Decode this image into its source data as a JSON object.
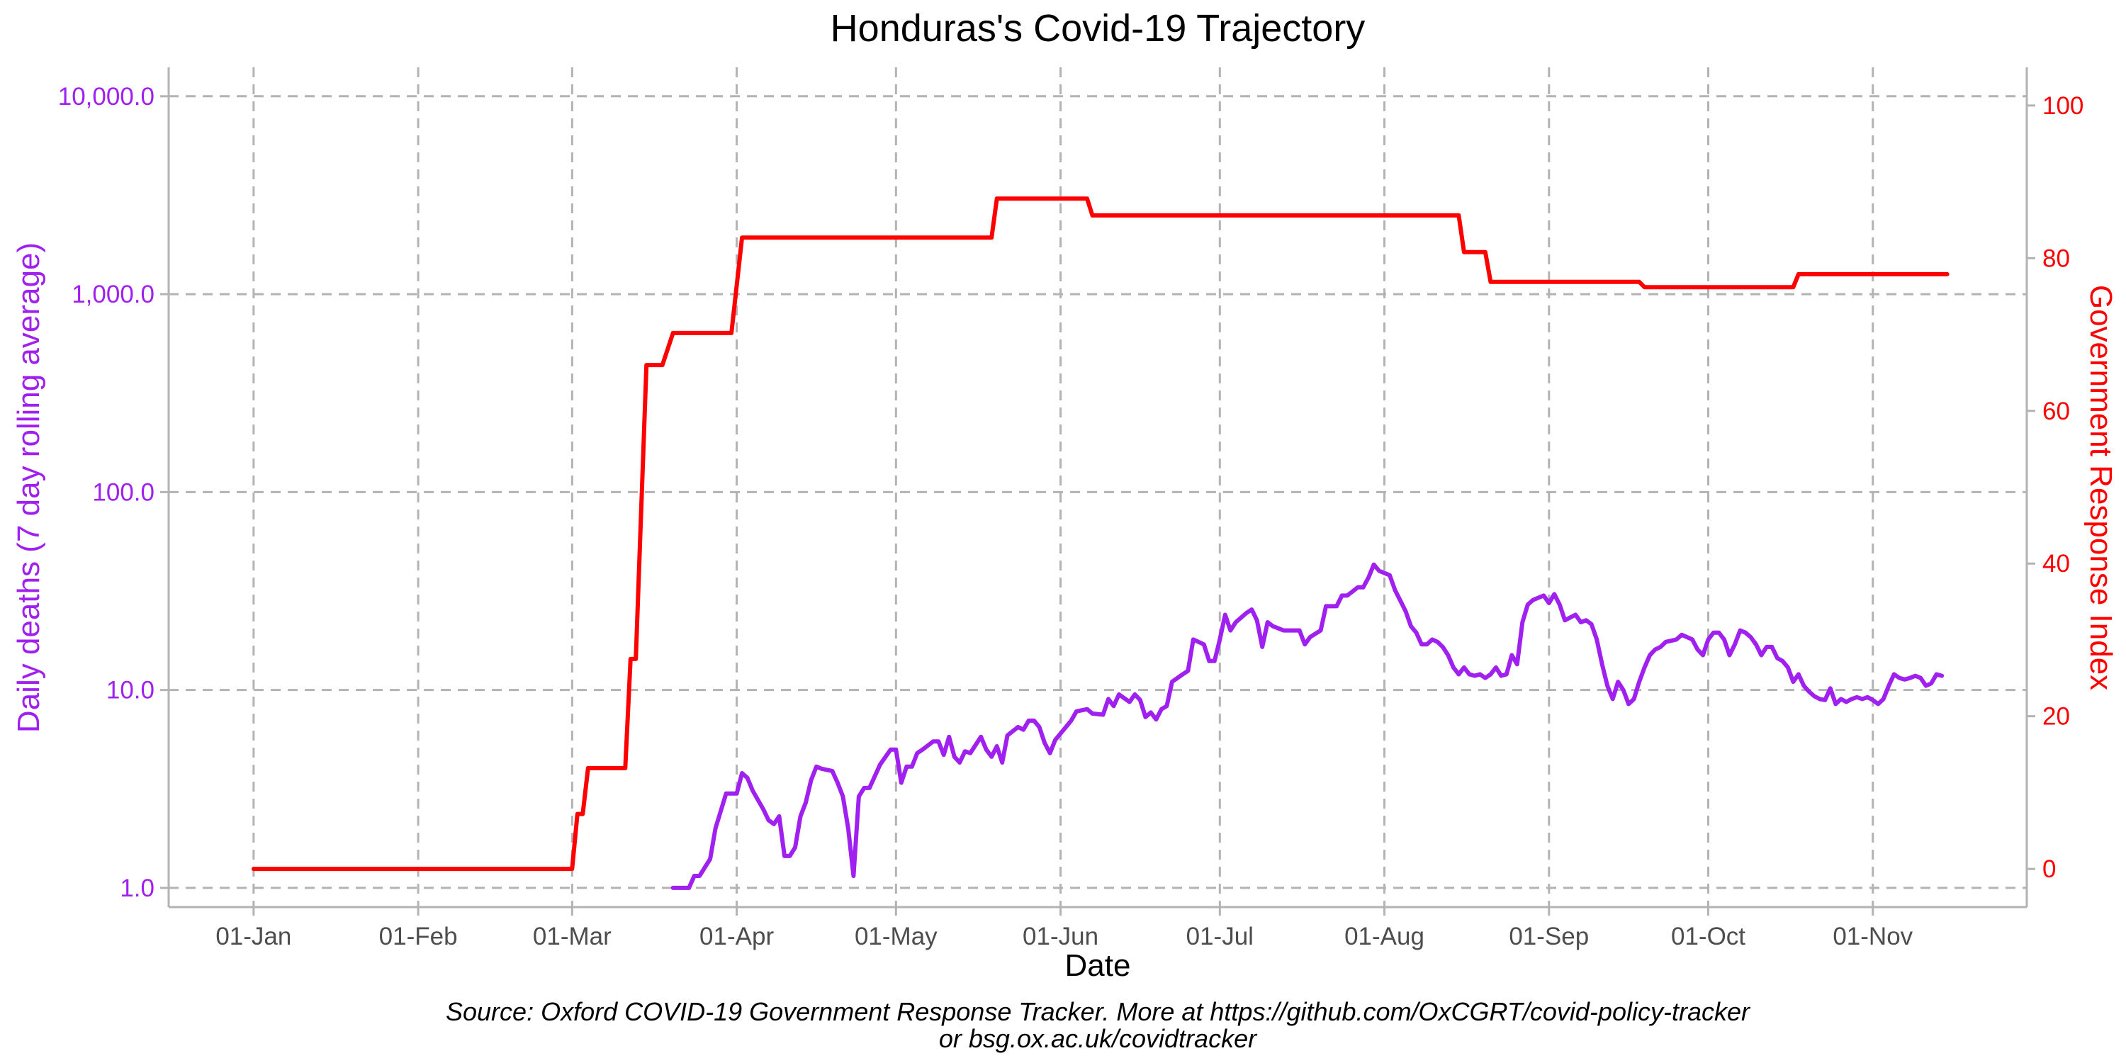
{
  "chart_data": {
    "type": "line",
    "title": "Honduras's Covid-19 Trajectory",
    "xlabel": "Date",
    "ylabel_left": "Daily deaths (7 day rolling average)",
    "ylabel_right": "Government Response Index",
    "y_left_scale": "log10",
    "y_left_ticks": [
      1,
      10,
      100,
      1000,
      10000
    ],
    "y_left_tick_labels": [
      "1.0",
      "10.0",
      "100.0",
      "1,000.0",
      "10,000.0"
    ],
    "y_right_ticks": [
      0,
      20,
      40,
      60,
      80,
      100
    ],
    "y_right_tick_labels": [
      "0",
      "20",
      "40",
      "60",
      "80",
      "100"
    ],
    "x_ticks": [
      "2020-01-01",
      "2020-02-01",
      "2020-03-01",
      "2020-04-01",
      "2020-05-01",
      "2020-06-01",
      "2020-07-01",
      "2020-08-01",
      "2020-09-01",
      "2020-10-01",
      "2020-11-01"
    ],
    "x_tick_labels": [
      "01-Jan",
      "01-Feb",
      "01-Mar",
      "01-Apr",
      "01-May",
      "01-Jun",
      "01-Jul",
      "01-Aug",
      "01-Sep",
      "01-Oct",
      "01-Nov"
    ],
    "x_range": [
      "2019-12-16",
      "2020-11-30"
    ],
    "y_left_range": [
      0.8,
      14000
    ],
    "y_right_range": [
      -5,
      105
    ],
    "grid": true,
    "colors": {
      "deaths": "#a020f0",
      "response": "#ff0000",
      "grid": "#b3b3b3"
    },
    "series": [
      {
        "name": "Government Response Index",
        "axis": "right",
        "points": [
          [
            "2020-01-01",
            0
          ],
          [
            "2020-03-01",
            0
          ],
          [
            "2020-03-02",
            7.2
          ],
          [
            "2020-03-03",
            7.2
          ],
          [
            "2020-03-04",
            13.2
          ],
          [
            "2020-03-11",
            13.2
          ],
          [
            "2020-03-12",
            27.5
          ],
          [
            "2020-03-13",
            27.5
          ],
          [
            "2020-03-15",
            66
          ],
          [
            "2020-03-18",
            66
          ],
          [
            "2020-03-20",
            70.2
          ],
          [
            "2020-03-31",
            70.2
          ],
          [
            "2020-04-02",
            82.7
          ],
          [
            "2020-05-19",
            82.7
          ],
          [
            "2020-05-20",
            87.8
          ],
          [
            "2020-06-06",
            87.8
          ],
          [
            "2020-06-07",
            85.6
          ],
          [
            "2020-08-15",
            85.6
          ],
          [
            "2020-08-16",
            80.8
          ],
          [
            "2020-08-20",
            80.8
          ],
          [
            "2020-08-21",
            76.9
          ],
          [
            "2020-09-18",
            76.9
          ],
          [
            "2020-09-19",
            76.2
          ],
          [
            "2020-10-17",
            76.2
          ],
          [
            "2020-10-18",
            77.9
          ],
          [
            "2020-11-15",
            77.9
          ]
        ]
      },
      {
        "name": "Daily deaths (7 day rolling average)",
        "axis": "left",
        "points": [
          [
            "2020-03-20",
            1.0
          ],
          [
            "2020-03-23",
            1.0
          ],
          [
            "2020-03-24",
            1.15
          ],
          [
            "2020-03-25",
            1.15
          ],
          [
            "2020-03-27",
            1.4
          ],
          [
            "2020-03-28",
            2.0
          ],
          [
            "2020-03-30",
            3.0
          ],
          [
            "2020-04-01",
            3.0
          ],
          [
            "2020-04-02",
            3.8
          ],
          [
            "2020-04-03",
            3.6
          ],
          [
            "2020-04-04",
            3.1
          ],
          [
            "2020-04-06",
            2.5
          ],
          [
            "2020-04-07",
            2.2
          ],
          [
            "2020-04-08",
            2.1
          ],
          [
            "2020-04-09",
            2.3
          ],
          [
            "2020-04-10",
            1.45
          ],
          [
            "2020-04-11",
            1.45
          ],
          [
            "2020-04-12",
            1.6
          ],
          [
            "2020-04-13",
            2.3
          ],
          [
            "2020-04-14",
            2.7
          ],
          [
            "2020-04-15",
            3.5
          ],
          [
            "2020-04-16",
            4.1
          ],
          [
            "2020-04-17",
            4.0
          ],
          [
            "2020-04-19",
            3.9
          ],
          [
            "2020-04-20",
            3.4
          ],
          [
            "2020-04-21",
            2.9
          ],
          [
            "2020-04-22",
            2.0
          ],
          [
            "2020-04-23",
            1.15
          ],
          [
            "2020-04-24",
            2.9
          ],
          [
            "2020-04-25",
            3.2
          ],
          [
            "2020-04-26",
            3.2
          ],
          [
            "2020-04-28",
            4.2
          ],
          [
            "2020-04-30",
            5.0
          ],
          [
            "2020-05-01",
            5.0
          ],
          [
            "2020-05-02",
            3.4
          ],
          [
            "2020-05-03",
            4.1
          ],
          [
            "2020-05-04",
            4.1
          ],
          [
            "2020-05-05",
            4.8
          ],
          [
            "2020-05-06",
            5.0
          ],
          [
            "2020-05-08",
            5.5
          ],
          [
            "2020-05-09",
            5.5
          ],
          [
            "2020-05-10",
            4.7
          ],
          [
            "2020-05-11",
            5.8
          ],
          [
            "2020-05-12",
            4.6
          ],
          [
            "2020-05-13",
            4.3
          ],
          [
            "2020-05-14",
            4.9
          ],
          [
            "2020-05-15",
            4.8
          ],
          [
            "2020-05-17",
            5.8
          ],
          [
            "2020-05-18",
            5.0
          ],
          [
            "2020-05-19",
            4.6
          ],
          [
            "2020-05-20",
            5.2
          ],
          [
            "2020-05-21",
            4.3
          ],
          [
            "2020-05-22",
            5.9
          ],
          [
            "2020-05-24",
            6.5
          ],
          [
            "2020-05-25",
            6.3
          ],
          [
            "2020-05-26",
            7.0
          ],
          [
            "2020-05-27",
            7.0
          ],
          [
            "2020-05-28",
            6.5
          ],
          [
            "2020-05-29",
            5.4
          ],
          [
            "2020-05-30",
            4.8
          ],
          [
            "2020-05-31",
            5.6
          ],
          [
            "2020-06-02",
            6.5
          ],
          [
            "2020-06-03",
            7.0
          ],
          [
            "2020-06-04",
            7.8
          ],
          [
            "2020-06-06",
            8.0
          ],
          [
            "2020-06-07",
            7.6
          ],
          [
            "2020-06-09",
            7.5
          ],
          [
            "2020-06-10",
            9.0
          ],
          [
            "2020-06-11",
            8.3
          ],
          [
            "2020-06-12",
            9.5
          ],
          [
            "2020-06-14",
            8.7
          ],
          [
            "2020-06-15",
            9.5
          ],
          [
            "2020-06-16",
            8.9
          ],
          [
            "2020-06-17",
            7.3
          ],
          [
            "2020-06-18",
            7.7
          ],
          [
            "2020-06-19",
            7.1
          ],
          [
            "2020-06-20",
            8.0
          ],
          [
            "2020-06-21",
            8.3
          ],
          [
            "2020-06-22",
            11.0
          ],
          [
            "2020-06-24",
            12.0
          ],
          [
            "2020-06-25",
            12.5
          ],
          [
            "2020-06-26",
            18.0
          ],
          [
            "2020-06-27",
            17.5
          ],
          [
            "2020-06-28",
            17.0
          ],
          [
            "2020-06-29",
            14.0
          ],
          [
            "2020-06-30",
            14.0
          ],
          [
            "2020-07-01",
            18.0
          ],
          [
            "2020-07-02",
            24.0
          ],
          [
            "2020-07-03",
            20.0
          ],
          [
            "2020-07-04",
            22.0
          ],
          [
            "2020-07-06",
            24.5
          ],
          [
            "2020-07-07",
            25.5
          ],
          [
            "2020-07-08",
            22.5
          ],
          [
            "2020-07-09",
            16.5
          ],
          [
            "2020-07-10",
            22.0
          ],
          [
            "2020-07-11",
            21.0
          ],
          [
            "2020-07-12",
            20.5
          ],
          [
            "2020-07-13",
            20.0
          ],
          [
            "2020-07-16",
            20.0
          ],
          [
            "2020-07-17",
            17.0
          ],
          [
            "2020-07-18",
            18.5
          ],
          [
            "2020-07-20",
            20.0
          ],
          [
            "2020-07-21",
            26.5
          ],
          [
            "2020-07-23",
            26.5
          ],
          [
            "2020-07-24",
            30.0
          ],
          [
            "2020-07-25",
            30.0
          ],
          [
            "2020-07-27",
            33.0
          ],
          [
            "2020-07-28",
            33.0
          ],
          [
            "2020-07-29",
            37.0
          ],
          [
            "2020-07-30",
            43.0
          ],
          [
            "2020-07-31",
            40.0
          ],
          [
            "2020-08-02",
            38.0
          ],
          [
            "2020-08-03",
            32.0
          ],
          [
            "2020-08-05",
            25.0
          ],
          [
            "2020-08-06",
            21.0
          ],
          [
            "2020-08-07",
            19.5
          ],
          [
            "2020-08-08",
            17.0
          ],
          [
            "2020-08-09",
            17.0
          ],
          [
            "2020-08-10",
            18.0
          ],
          [
            "2020-08-11",
            17.5
          ],
          [
            "2020-08-12",
            16.5
          ],
          [
            "2020-08-13",
            15.0
          ],
          [
            "2020-08-14",
            13.0
          ],
          [
            "2020-08-15",
            12.0
          ],
          [
            "2020-08-16",
            13.0
          ],
          [
            "2020-08-17",
            12.0
          ],
          [
            "2020-08-18",
            11.8
          ],
          [
            "2020-08-19",
            12.0
          ],
          [
            "2020-08-20",
            11.5
          ],
          [
            "2020-08-21",
            12.0
          ],
          [
            "2020-08-22",
            13.0
          ],
          [
            "2020-08-23",
            11.8
          ],
          [
            "2020-08-24",
            12.0
          ],
          [
            "2020-08-25",
            15.0
          ],
          [
            "2020-08-26",
            13.5
          ],
          [
            "2020-08-27",
            22.0
          ],
          [
            "2020-08-28",
            27.0
          ],
          [
            "2020-08-29",
            28.5
          ],
          [
            "2020-08-31",
            30.0
          ],
          [
            "2020-09-01",
            27.5
          ],
          [
            "2020-09-02",
            30.5
          ],
          [
            "2020-09-03",
            27.0
          ],
          [
            "2020-09-04",
            22.5
          ],
          [
            "2020-09-06",
            24.0
          ],
          [
            "2020-09-07",
            22.0
          ],
          [
            "2020-09-08",
            22.5
          ],
          [
            "2020-09-09",
            21.5
          ],
          [
            "2020-09-10",
            18.0
          ],
          [
            "2020-09-11",
            13.5
          ],
          [
            "2020-09-12",
            10.5
          ],
          [
            "2020-09-13",
            9.0
          ],
          [
            "2020-09-14",
            11.0
          ],
          [
            "2020-09-15",
            10.0
          ],
          [
            "2020-09-16",
            8.5
          ],
          [
            "2020-09-17",
            9.0
          ],
          [
            "2020-09-18",
            11.0
          ],
          [
            "2020-09-19",
            13.0
          ],
          [
            "2020-09-20",
            15.0
          ],
          [
            "2020-09-21",
            16.0
          ],
          [
            "2020-09-22",
            16.5
          ],
          [
            "2020-09-23",
            17.5
          ],
          [
            "2020-09-25",
            18.0
          ],
          [
            "2020-09-26",
            19.0
          ],
          [
            "2020-09-28",
            18.0
          ],
          [
            "2020-09-29",
            16.0
          ],
          [
            "2020-09-30",
            15.0
          ],
          [
            "2020-10-01",
            18.0
          ],
          [
            "2020-10-02",
            19.5
          ],
          [
            "2020-10-03",
            19.5
          ],
          [
            "2020-10-04",
            18.0
          ],
          [
            "2020-10-05",
            15.0
          ],
          [
            "2020-10-06",
            17.0
          ],
          [
            "2020-10-07",
            20.0
          ],
          [
            "2020-10-08",
            19.5
          ],
          [
            "2020-10-09",
            18.5
          ],
          [
            "2020-10-10",
            17.0
          ],
          [
            "2020-10-11",
            15.0
          ],
          [
            "2020-10-12",
            16.5
          ],
          [
            "2020-10-13",
            16.5
          ],
          [
            "2020-10-14",
            14.5
          ],
          [
            "2020-10-15",
            14.0
          ],
          [
            "2020-10-16",
            13.0
          ],
          [
            "2020-10-17",
            11.0
          ],
          [
            "2020-10-18",
            12.0
          ],
          [
            "2020-10-19",
            10.5
          ],
          [
            "2020-10-20",
            9.8
          ],
          [
            "2020-10-21",
            9.3
          ],
          [
            "2020-10-22",
            9.0
          ],
          [
            "2020-10-23",
            8.9
          ],
          [
            "2020-10-24",
            10.2
          ],
          [
            "2020-10-25",
            8.5
          ],
          [
            "2020-10-26",
            9.0
          ],
          [
            "2020-10-27",
            8.7
          ],
          [
            "2020-10-28",
            9.0
          ],
          [
            "2020-10-29",
            9.2
          ],
          [
            "2020-10-30",
            9.0
          ],
          [
            "2020-10-31",
            9.2
          ],
          [
            "2020-11-01",
            8.9
          ],
          [
            "2020-11-02",
            8.5
          ],
          [
            "2020-11-03",
            9.0
          ],
          [
            "2020-11-04",
            10.5
          ],
          [
            "2020-11-05",
            12.0
          ],
          [
            "2020-11-06",
            11.5
          ],
          [
            "2020-11-07",
            11.3
          ],
          [
            "2020-11-08",
            11.5
          ],
          [
            "2020-11-09",
            11.8
          ],
          [
            "2020-11-10",
            11.5
          ],
          [
            "2020-11-11",
            10.5
          ],
          [
            "2020-11-12",
            10.8
          ],
          [
            "2020-11-13",
            12.0
          ],
          [
            "2020-11-14",
            11.8
          ]
        ]
      }
    ]
  },
  "caption": {
    "line1": "Source: Oxford COVID-19 Government Response Tracker. More at https://github.com/OxCGRT/covid-policy-tracker",
    "line2": "or bsg.ox.ac.uk/covidtracker"
  }
}
